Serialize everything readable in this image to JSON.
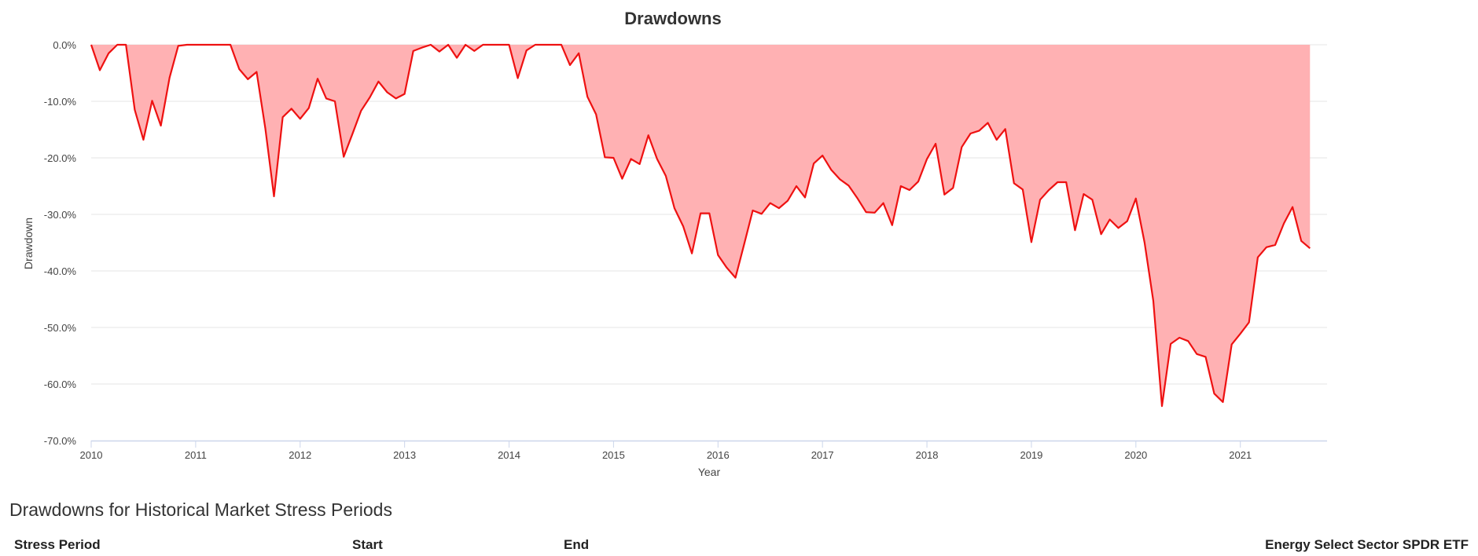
{
  "chart_data": {
    "type": "area",
    "title": "Drawdowns",
    "xlabel": "Year",
    "ylabel": "Drawdown",
    "ylim": [
      -70,
      0
    ],
    "xlim": [
      2010,
      2021.83
    ],
    "yticks": [
      0,
      -10,
      -20,
      -30,
      -40,
      -50,
      -60,
      -70
    ],
    "ytick_labels": [
      "0.0%",
      "-10.0%",
      "-20.0%",
      "-30.0%",
      "-40.0%",
      "-50.0%",
      "-60.0%",
      "-70.0%"
    ],
    "xticks": [
      2010,
      2011,
      2012,
      2013,
      2014,
      2015,
      2016,
      2017,
      2018,
      2019,
      2020,
      2021
    ],
    "xtick_labels": [
      "2010",
      "2011",
      "2012",
      "2013",
      "2014",
      "2015",
      "2016",
      "2017",
      "2018",
      "2019",
      "2020",
      "2021"
    ],
    "grid": true,
    "colors": {
      "line": "#ee1111",
      "fill": "#ffb1b3",
      "grid": "#e6e6e6",
      "xaxis": "#ccd6eb"
    },
    "series": [
      {
        "x": [
          2010.0,
          2010.083,
          2010.167,
          2010.25,
          2010.333,
          2010.417,
          2010.5,
          2010.583,
          2010.667,
          2010.75,
          2010.833,
          2010.917,
          2011.0,
          2011.083,
          2011.167,
          2011.25,
          2011.333,
          2011.417,
          2011.5,
          2011.583,
          2011.667,
          2011.75,
          2011.833,
          2011.917,
          2012.0,
          2012.083,
          2012.167,
          2012.25,
          2012.333,
          2012.417,
          2012.5,
          2012.583,
          2012.667,
          2012.75,
          2012.833,
          2012.917,
          2013.0,
          2013.083,
          2013.167,
          2013.25,
          2013.333,
          2013.417,
          2013.5,
          2013.583,
          2013.667,
          2013.75,
          2013.833,
          2013.917,
          2014.0,
          2014.083,
          2014.167,
          2014.25,
          2014.333,
          2014.417,
          2014.5,
          2014.583,
          2014.667,
          2014.75,
          2014.833,
          2014.917,
          2015.0,
          2015.083,
          2015.167,
          2015.25,
          2015.333,
          2015.417,
          2015.5,
          2015.583,
          2015.667,
          2015.75,
          2015.833,
          2015.917,
          2016.0,
          2016.083,
          2016.167,
          2016.25,
          2016.333,
          2016.417,
          2016.5,
          2016.583,
          2016.667,
          2016.75,
          2016.833,
          2016.917,
          2017.0,
          2017.083,
          2017.167,
          2017.25,
          2017.333,
          2017.417,
          2017.5,
          2017.583,
          2017.667,
          2017.75,
          2017.833,
          2017.917,
          2018.0,
          2018.083,
          2018.167,
          2018.25,
          2018.333,
          2018.417,
          2018.5,
          2018.583,
          2018.667,
          2018.75,
          2018.833,
          2018.917,
          2019.0,
          2019.083,
          2019.167,
          2019.25,
          2019.333,
          2019.417,
          2019.5,
          2019.583,
          2019.667,
          2019.75,
          2019.833,
          2019.917,
          2020.0,
          2020.083,
          2020.167,
          2020.25,
          2020.333,
          2020.417,
          2020.5,
          2020.583,
          2020.667,
          2020.75,
          2020.833,
          2020.917,
          2021.0,
          2021.083,
          2021.167,
          2021.25,
          2021.333,
          2021.417,
          2021.5,
          2021.583,
          2021.667
        ],
        "y": [
          0.0,
          -4.5,
          -1.5,
          0.0,
          0.0,
          -11.5,
          -16.8,
          -9.9,
          -14.3,
          -5.8,
          -0.2,
          0.0,
          0.0,
          0.0,
          0.0,
          0.0,
          0.0,
          -4.3,
          -6.1,
          -4.8,
          -14.8,
          -26.8,
          -12.8,
          -11.3,
          -13.1,
          -11.2,
          -6.0,
          -9.5,
          -10.0,
          -19.8,
          -15.8,
          -11.7,
          -9.3,
          -6.5,
          -8.4,
          -9.5,
          -8.7,
          -1.1,
          -0.5,
          0.0,
          -1.2,
          0.0,
          -2.3,
          0.0,
          -1.1,
          0.0,
          0.0,
          0.0,
          0.0,
          -5.9,
          -1.0,
          0.0,
          0.0,
          0.0,
          0.0,
          -3.6,
          -1.5,
          -9.2,
          -12.3,
          -19.9,
          -20.0,
          -23.7,
          -20.2,
          -21.1,
          -16.0,
          -20.2,
          -23.2,
          -28.9,
          -32.1,
          -36.9,
          -29.8,
          -29.8,
          -37.2,
          -39.4,
          -41.2,
          -35.3,
          -29.3,
          -29.9,
          -28.0,
          -28.9,
          -27.6,
          -25.0,
          -27.0,
          -21.0,
          -19.6,
          -22.1,
          -23.8,
          -24.9,
          -27.1,
          -29.6,
          -29.7,
          -28.0,
          -31.9,
          -25.0,
          -25.7,
          -24.2,
          -20.2,
          -17.5,
          -26.5,
          -25.3,
          -18.1,
          -15.7,
          -15.2,
          -13.8,
          -16.8,
          -14.9,
          -24.5,
          -25.6,
          -34.9,
          -27.4,
          -25.7,
          -24.3,
          -24.3,
          -32.8,
          -26.4,
          -27.4,
          -33.5,
          -30.9,
          -32.4,
          -31.2,
          -27.2,
          -35.0,
          -45.3,
          -63.9,
          -52.9,
          -51.8,
          -52.4,
          -54.7,
          -55.2,
          -61.7,
          -63.2,
          -53.0,
          -51.1,
          -49.1,
          -37.6,
          -35.8,
          -35.4,
          -31.6,
          -28.7,
          -34.7,
          -36.0
        ]
      }
    ]
  },
  "section": {
    "heading": "Drawdowns for Historical Market Stress Periods"
  },
  "table": {
    "headers": [
      "Stress Period",
      "Start",
      "End",
      "Energy Select Sector SPDR ETF"
    ]
  }
}
